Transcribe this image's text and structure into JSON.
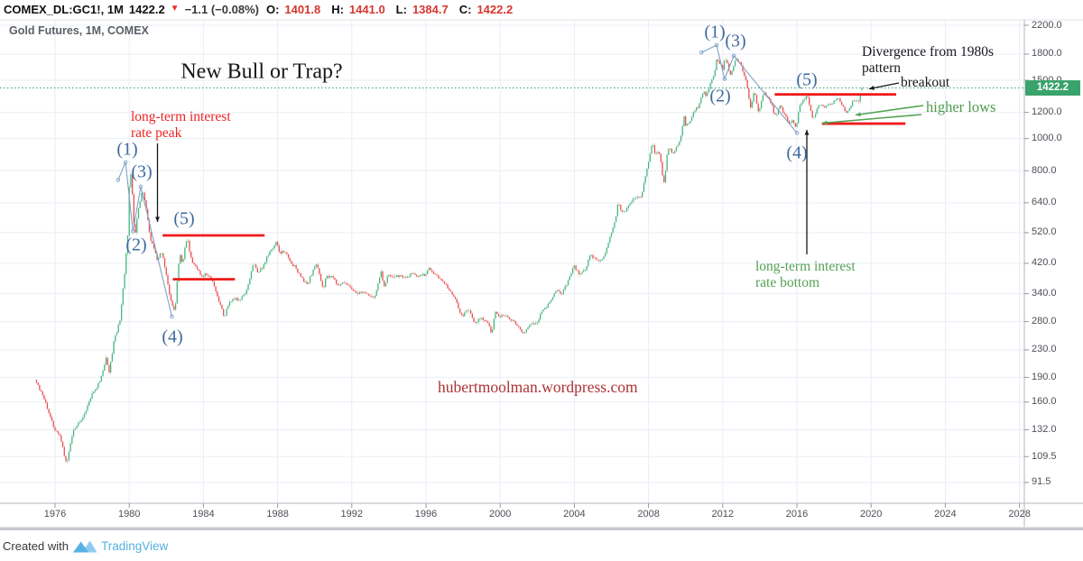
{
  "header": {
    "symbol": "COMEX_DL:GC1!, 1M",
    "last_price": "1422.2",
    "direction_icon": "▼",
    "change": "−1.1 (−0.08%)",
    "ohlc": [
      {
        "label": "O:",
        "value": "1401.8"
      },
      {
        "label": "H:",
        "value": "1441.0"
      },
      {
        "label": "L:",
        "value": "1384.7"
      },
      {
        "label": "C:",
        "value": "1422.2"
      }
    ]
  },
  "legend": {
    "title": "Gold Futures, 1M, COMEX"
  },
  "annotations": {
    "chart_title": "New Bull or Trap?",
    "rate_peak_line1": "long-term interest",
    "rate_peak_line2": "rate peak",
    "divergence_line1": "Divergence from 1980s",
    "divergence_line2": "pattern",
    "breakout": "breakout",
    "higher_lows": "higher lows",
    "rate_bottom_line1": "long-term interest",
    "rate_bottom_line2": "rate bottom",
    "waves_left": [
      "(1)",
      "(3)",
      "(2)",
      "(5)",
      "(4)"
    ],
    "waves_right": [
      "(1)",
      "(3)",
      "(2)",
      "(5)",
      "(4)"
    ]
  },
  "watermark": "hubertmoolman.wordpress.com",
  "footer": {
    "created_with": "Created with",
    "brand": "TradingView"
  },
  "colors": {
    "up": "#45b77e",
    "down": "#e8504e",
    "up_wick": "#9fd3bc",
    "down_wick": "#f2aeab",
    "trend_red": "#ef1b1b",
    "price_line_green": "#33a06f",
    "badge_green": "#3aa36c",
    "wave_blue": "#7fa0c8",
    "label_blue": "#3e6a9e",
    "annotation_red": "#ee2424",
    "annotation_green": "#55a155",
    "grid": "#e9eef6",
    "axis_text": "#4c4f57",
    "brand_blue": "#55b1e0"
  },
  "chart_data": {
    "type": "candlestick",
    "title": "Gold Futures, 1M, COMEX",
    "symbol": "COMEX_DL:GC1!",
    "interval": "1M",
    "scale": "logarithmic",
    "x_ticks": [
      1976,
      1980,
      1984,
      1988,
      1992,
      1996,
      2000,
      2004,
      2008,
      2012,
      2016,
      2020,
      2024,
      2028
    ],
    "y_ticks": [
      2200.0,
      1800.0,
      1500.0,
      1200.0,
      1000.0,
      800.0,
      640.0,
      520.0,
      420.0,
      340.0,
      280.0,
      230.0,
      190.0,
      160.0,
      132.0,
      109.5,
      91.5
    ],
    "y_tick_labels": [
      "2200.0",
      "1800.0",
      "1500.0",
      "1200.0",
      "1000.0",
      "800.0",
      "640.0",
      "520.0",
      "420.0",
      "340.0",
      "280.0",
      "230.0",
      "190.0",
      "160.0",
      "132.0",
      "109.5",
      "91.5"
    ],
    "x_range": [
      1975.0,
      2028.6
    ],
    "current_price": 1422.2,
    "current_price_label": "1422.2",
    "last_candle": {
      "t": 2019.5,
      "o": 1401.8,
      "h": 1441.0,
      "l": 1384.7,
      "c": 1422.2
    },
    "anchors": [
      [
        1975.0,
        183
      ],
      [
        1975.33,
        168
      ],
      [
        1975.67,
        148
      ],
      [
        1976.0,
        131
      ],
      [
        1976.25,
        127
      ],
      [
        1976.62,
        104
      ],
      [
        1977.0,
        132
      ],
      [
        1977.5,
        144
      ],
      [
        1978.0,
        170
      ],
      [
        1978.42,
        185
      ],
      [
        1978.75,
        218
      ],
      [
        1978.92,
        196
      ],
      [
        1979.17,
        245
      ],
      [
        1979.5,
        282
      ],
      [
        1979.75,
        390
      ],
      [
        1979.92,
        512
      ],
      [
        1980.04,
        845
      ],
      [
        1980.21,
        630
      ],
      [
        1980.29,
        495
      ],
      [
        1980.46,
        600
      ],
      [
        1980.71,
        710
      ],
      [
        1980.96,
        590
      ],
      [
        1981.13,
        500
      ],
      [
        1981.54,
        425
      ],
      [
        1981.71,
        460
      ],
      [
        1981.96,
        400
      ],
      [
        1982.21,
        330
      ],
      [
        1982.46,
        298
      ],
      [
        1982.71,
        450
      ],
      [
        1982.87,
        420
      ],
      [
        1983.12,
        505
      ],
      [
        1983.37,
        425
      ],
      [
        1983.62,
        412
      ],
      [
        1983.87,
        382
      ],
      [
        1984.12,
        390
      ],
      [
        1984.46,
        377
      ],
      [
        1984.71,
        340
      ],
      [
        1984.96,
        310
      ],
      [
        1985.12,
        288
      ],
      [
        1985.37,
        318
      ],
      [
        1985.62,
        328
      ],
      [
        1985.96,
        325
      ],
      [
        1986.29,
        342
      ],
      [
        1986.71,
        423
      ],
      [
        1986.96,
        392
      ],
      [
        1987.29,
        420
      ],
      [
        1987.62,
        460
      ],
      [
        1987.92,
        488
      ],
      [
        1988.12,
        452
      ],
      [
        1988.46,
        455
      ],
      [
        1988.71,
        420
      ],
      [
        1988.96,
        412
      ],
      [
        1989.21,
        385
      ],
      [
        1989.62,
        362
      ],
      [
        1989.92,
        402
      ],
      [
        1990.12,
        416
      ],
      [
        1990.46,
        352
      ],
      [
        1990.62,
        385
      ],
      [
        1990.96,
        382
      ],
      [
        1991.21,
        360
      ],
      [
        1991.62,
        368
      ],
      [
        1991.96,
        352
      ],
      [
        1992.29,
        340
      ],
      [
        1992.71,
        343
      ],
      [
        1992.96,
        333
      ],
      [
        1993.21,
        328
      ],
      [
        1993.58,
        398
      ],
      [
        1993.75,
        358
      ],
      [
        1993.96,
        388
      ],
      [
        1994.21,
        382
      ],
      [
        1994.62,
        386
      ],
      [
        1994.96,
        381
      ],
      [
        1995.29,
        392
      ],
      [
        1995.71,
        384
      ],
      [
        1995.96,
        388
      ],
      [
        1996.12,
        408
      ],
      [
        1996.46,
        390
      ],
      [
        1996.96,
        368
      ],
      [
        1997.29,
        348
      ],
      [
        1997.62,
        324
      ],
      [
        1997.96,
        289
      ],
      [
        1998.29,
        306
      ],
      [
        1998.62,
        276
      ],
      [
        1998.96,
        288
      ],
      [
        1999.29,
        280
      ],
      [
        1999.54,
        256
      ],
      [
        1999.75,
        300
      ],
      [
        1999.96,
        289
      ],
      [
        2000.12,
        294
      ],
      [
        2000.46,
        286
      ],
      [
        2000.96,
        272
      ],
      [
        2001.29,
        258
      ],
      [
        2001.62,
        274
      ],
      [
        2001.96,
        277
      ],
      [
        2002.29,
        303
      ],
      [
        2002.62,
        318
      ],
      [
        2002.96,
        345
      ],
      [
        2003.12,
        348
      ],
      [
        2003.29,
        336
      ],
      [
        2003.71,
        378
      ],
      [
        2003.96,
        415
      ],
      [
        2004.29,
        388
      ],
      [
        2004.62,
        402
      ],
      [
        2004.87,
        450
      ],
      [
        2004.96,
        438
      ],
      [
        2005.29,
        428
      ],
      [
        2005.62,
        440
      ],
      [
        2005.96,
        513
      ],
      [
        2006.21,
        565
      ],
      [
        2006.37,
        650
      ],
      [
        2006.46,
        615
      ],
      [
        2006.71,
        600
      ],
      [
        2006.96,
        635
      ],
      [
        2007.29,
        665
      ],
      [
        2007.62,
        665
      ],
      [
        2007.87,
        785
      ],
      [
        2007.96,
        835
      ],
      [
        2008.21,
        968
      ],
      [
        2008.37,
        890
      ],
      [
        2008.54,
        928
      ],
      [
        2008.71,
        830
      ],
      [
        2008.79,
        730
      ],
      [
        2008.87,
        745
      ],
      [
        2008.96,
        870
      ],
      [
        2009.12,
        940
      ],
      [
        2009.29,
        890
      ],
      [
        2009.46,
        930
      ],
      [
        2009.71,
        995
      ],
      [
        2009.92,
        1170
      ],
      [
        2009.96,
        1097
      ],
      [
        2010.12,
        1108
      ],
      [
        2010.37,
        1180
      ],
      [
        2010.54,
        1240
      ],
      [
        2010.71,
        1248
      ],
      [
        2010.87,
        1340
      ],
      [
        2010.96,
        1420
      ],
      [
        2011.04,
        1330
      ],
      [
        2011.29,
        1440
      ],
      [
        2011.46,
        1530
      ],
      [
        2011.62,
        1620
      ],
      [
        2011.71,
        1828
      ],
      [
        2011.79,
        1620
      ],
      [
        2011.87,
        1740
      ],
      [
        2011.96,
        1565
      ],
      [
        2012.12,
        1770
      ],
      [
        2012.29,
        1665
      ],
      [
        2012.37,
        1560
      ],
      [
        2012.54,
        1600
      ],
      [
        2012.71,
        1770
      ],
      [
        2012.79,
        1720
      ],
      [
        2012.96,
        1675
      ],
      [
        2013.12,
        1580
      ],
      [
        2013.29,
        1475
      ],
      [
        2013.37,
        1390
      ],
      [
        2013.46,
        1230
      ],
      [
        2013.62,
        1312
      ],
      [
        2013.71,
        1395
      ],
      [
        2013.87,
        1250
      ],
      [
        2013.96,
        1202
      ],
      [
        2014.12,
        1325
      ],
      [
        2014.21,
        1384
      ],
      [
        2014.46,
        1315
      ],
      [
        2014.62,
        1285
      ],
      [
        2014.79,
        1165
      ],
      [
        2014.96,
        1185
      ],
      [
        2015.04,
        1280
      ],
      [
        2015.29,
        1185
      ],
      [
        2015.46,
        1170
      ],
      [
        2015.54,
        1095
      ],
      [
        2015.79,
        1140
      ],
      [
        2015.96,
        1060
      ],
      [
        2016.12,
        1235
      ],
      [
        2016.29,
        1290
      ],
      [
        2016.54,
        1350
      ],
      [
        2016.62,
        1310
      ],
      [
        2016.79,
        1175
      ],
      [
        2016.96,
        1150
      ],
      [
        2017.12,
        1250
      ],
      [
        2017.29,
        1265
      ],
      [
        2017.46,
        1240
      ],
      [
        2017.71,
        1280
      ],
      [
        2017.87,
        1275
      ],
      [
        2017.96,
        1302
      ],
      [
        2018.12,
        1318
      ],
      [
        2018.29,
        1315
      ],
      [
        2018.46,
        1250
      ],
      [
        2018.62,
        1200
      ],
      [
        2018.79,
        1215
      ],
      [
        2018.96,
        1282
      ],
      [
        2019.12,
        1313
      ],
      [
        2019.29,
        1283
      ],
      [
        2019.37,
        1305
      ],
      [
        2019.46,
        1410
      ],
      [
        2019.5,
        1422.2
      ]
    ],
    "trend_lines": [
      {
        "name": "1980s-wave5-resistance",
        "from": [
          1981.8,
          510
        ],
        "to": [
          1987.3,
          510
        ]
      },
      {
        "name": "1980s-support",
        "from": [
          1982.35,
          376
        ],
        "to": [
          1985.7,
          376
        ]
      },
      {
        "name": "current-resistance",
        "from": [
          2014.8,
          1360
        ],
        "to": [
          2021.35,
          1360
        ]
      },
      {
        "name": "current-higher-lows",
        "from": [
          2017.35,
          1110
        ],
        "to": [
          2021.85,
          1110
        ]
      }
    ],
    "wave_overlays": [
      {
        "name": "1980s-pattern",
        "points": [
          [
            1979.4,
            750
          ],
          [
            1979.8,
            848
          ],
          [
            1980.2,
            525
          ],
          [
            1980.62,
            716
          ],
          [
            1982.3,
            290
          ]
        ]
      },
      {
        "name": "current-pattern",
        "points": [
          [
            2010.85,
            1820
          ],
          [
            2011.67,
            1916
          ],
          [
            2012.1,
            1515
          ],
          [
            2012.6,
            1780
          ],
          [
            2016.0,
            1040
          ]
        ]
      }
    ]
  }
}
